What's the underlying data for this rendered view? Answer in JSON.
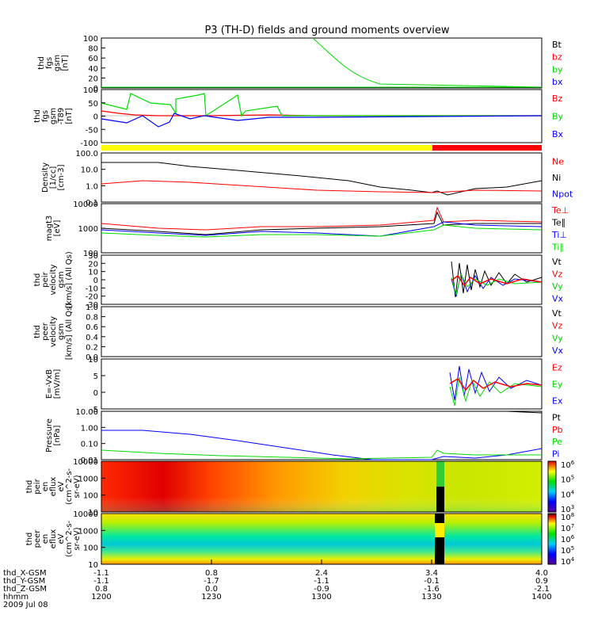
{
  "title": "P3 (TH-D) fields and ground moments overview",
  "colors": {
    "black": "#000000",
    "red": "#ff0000",
    "green": "#00dd00",
    "blue": "#0000ff",
    "yellow": "#ffff00"
  },
  "chart_data": {
    "type": "line",
    "time_axis": {
      "ticks": [
        "1200",
        "1230",
        "1300",
        "1330",
        "1400"
      ],
      "rows": [
        {
          "label": "thd_X-GSM",
          "values": [
            "-1.1",
            "0.8",
            "2.4",
            "3.4",
            "4.0"
          ]
        },
        {
          "label": "thd_Y-GSM",
          "values": [
            "-1.1",
            "-1.7",
            "-1.1",
            "-0.1",
            "0.9"
          ]
        },
        {
          "label": "thd_Z-GSM",
          "values": [
            "0.8",
            "0.0",
            "-0.9",
            "-1.6",
            "-2.1"
          ]
        },
        {
          "label": "hhmm",
          "values": [
            "1200",
            "1230",
            "1300",
            "1330",
            "1400"
          ]
        }
      ],
      "date": "2009 Jul 08"
    },
    "panels": [
      {
        "id": "fgs",
        "ylabel": [
          "thd",
          "fgs",
          "gsm",
          "[nT]"
        ],
        "ticks": [
          "100",
          "80",
          "60",
          "40",
          "20",
          "0"
        ],
        "legend": [
          {
            "name": "Bt",
            "color": "black"
          },
          {
            "name": "bz",
            "color": "red"
          },
          {
            "name": "by",
            "color": "green"
          },
          {
            "name": "bx",
            "color": "blue"
          }
        ]
      },
      {
        "id": "fgs_t89",
        "ylabel": [
          "thd",
          "fgs",
          "gsm",
          "-T89",
          "[nT]"
        ],
        "ticks": [
          "100",
          "50",
          "0",
          "-50",
          "-100"
        ],
        "legend": [
          {
            "name": "Bz",
            "color": "red"
          },
          {
            "name": "By",
            "color": "green"
          },
          {
            "name": "Bx",
            "color": "blue"
          }
        ]
      },
      {
        "id": "density",
        "ylabel": [
          "Density",
          "[1/cc]",
          "[cm-3]"
        ],
        "ticks": [
          "100.0",
          "10.0",
          "1.0",
          "0.1"
        ],
        "legend": [
          {
            "name": "Ne",
            "color": "red"
          },
          {
            "name": "Ni",
            "color": "black"
          },
          {
            "name": "Npot",
            "color": "blue"
          }
        ]
      },
      {
        "id": "temp",
        "ylabel": [
          "magt3",
          "[eV]"
        ],
        "ticks": [
          "10000",
          "1000",
          "100"
        ],
        "legend": [
          {
            "name": "Te⊥",
            "color": "red"
          },
          {
            "name": "Te∥",
            "color": "black"
          },
          {
            "name": "Ti⊥",
            "color": "blue"
          },
          {
            "name": "Ti∥",
            "color": "green"
          }
        ]
      },
      {
        "id": "peir_vel",
        "ylabel": [
          "thd",
          "peir",
          "velocity",
          "gsm",
          "[km/s] (All Qs)"
        ],
        "ticks": [
          "30",
          "20",
          "10",
          "0",
          "-10",
          "-20",
          "-30"
        ],
        "legend": [
          {
            "name": "Vt",
            "color": "black"
          },
          {
            "name": "Vz",
            "color": "red"
          },
          {
            "name": "Vy",
            "color": "green"
          },
          {
            "name": "Vx",
            "color": "blue"
          }
        ]
      },
      {
        "id": "peer_vel",
        "ylabel": [
          "thd",
          "peer",
          "velocity",
          "gsm",
          "[km/s] (All Qs)"
        ],
        "ticks": [
          "1.0",
          "0.8",
          "0.6",
          "0.4",
          "0.2",
          "0.0"
        ],
        "legend": [
          {
            "name": "Vt",
            "color": "black"
          },
          {
            "name": "Vz",
            "color": "red"
          },
          {
            "name": "Vy",
            "color": "green"
          },
          {
            "name": "Vx",
            "color": "blue"
          }
        ]
      },
      {
        "id": "efield",
        "ylabel": [
          "E=-VxB",
          "[mV/m]"
        ],
        "ticks": [
          "10",
          "5",
          "0",
          "-5"
        ],
        "legend": [
          {
            "name": "Ez",
            "color": "red"
          },
          {
            "name": "Ey",
            "color": "green"
          },
          {
            "name": "Ex",
            "color": "blue"
          }
        ]
      },
      {
        "id": "pressure",
        "ylabel": [
          "Pressure",
          "[nPa]"
        ],
        "ticks": [
          "10.00",
          "1.00",
          "0.10",
          "0.01"
        ],
        "legend": [
          {
            "name": "Pt",
            "color": "black"
          },
          {
            "name": "Pb",
            "color": "red"
          },
          {
            "name": "Pe",
            "color": "green"
          },
          {
            "name": "Pi",
            "color": "blue"
          }
        ]
      },
      {
        "id": "peir_spec",
        "ylabel": [
          "thd",
          "peir",
          "en",
          "eflux",
          "eV",
          "(cm^2-s-",
          "sr-eV)"
        ],
        "ticks": [
          "10000",
          "1000",
          "100",
          "10"
        ],
        "colorbar": [
          "10^6",
          "10^5",
          "10^4",
          "10^3"
        ]
      },
      {
        "id": "peer_spec",
        "ylabel": [
          "thd",
          "peer",
          "en",
          "eflux",
          "eV",
          "(cm^2-s-",
          "sr-eV)"
        ],
        "ticks": [
          "10000",
          "1000",
          "100",
          "10"
        ],
        "colorbar": [
          "10^8",
          "10^7",
          "10^6",
          "10^5",
          "10^4"
        ]
      }
    ]
  }
}
